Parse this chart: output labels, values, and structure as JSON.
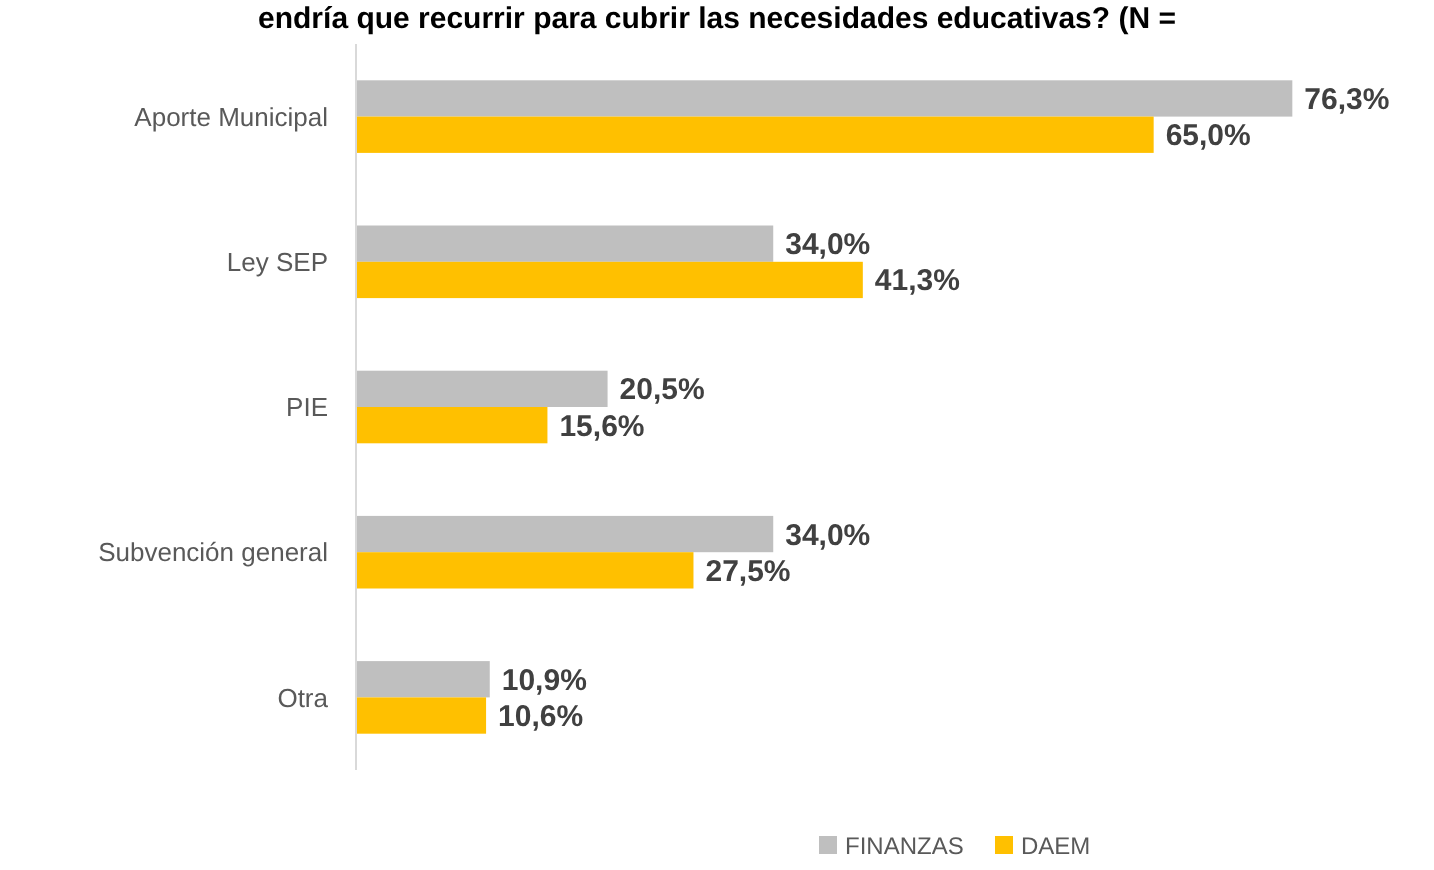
{
  "chart_data": {
    "type": "bar",
    "orientation": "horizontal",
    "title": "endría que recurrir para cubrir las necesidades educativas?  (N =",
    "categories": [
      "Aporte Municipal",
      "Ley SEP",
      "PIE",
      "Subvención general",
      "Otra"
    ],
    "series": [
      {
        "name": "FINANZAS",
        "color": "#bfbfbf",
        "values": [
          76.3,
          34.0,
          20.5,
          34.0,
          10.9
        ],
        "value_labels": [
          "76,3%",
          "34,0%",
          "20,5%",
          "34,0%",
          "10,9%"
        ]
      },
      {
        "name": "DAEM",
        "color": "#ffc000",
        "values": [
          65.0,
          41.3,
          15.6,
          27.5,
          10.6
        ],
        "value_labels": [
          "65,0%",
          "41,3%",
          "15,6%",
          "27,5%",
          "10,6%"
        ]
      }
    ],
    "tick_labels": "y",
    "legend": "bottom"
  }
}
